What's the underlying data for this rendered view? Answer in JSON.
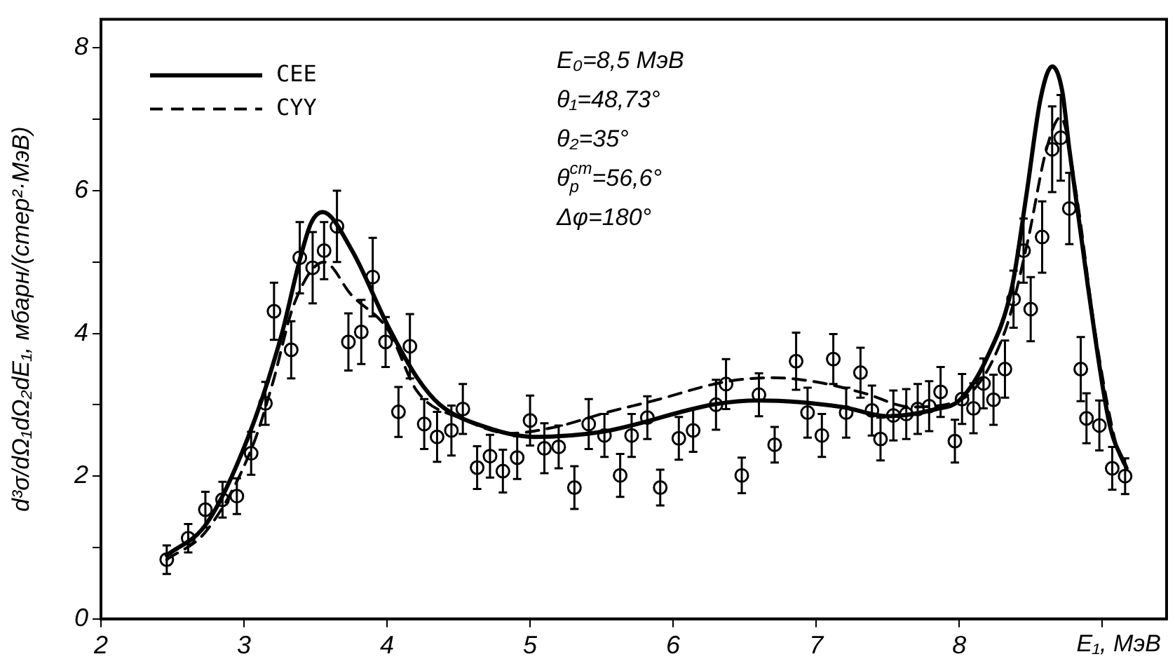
{
  "chart_data": {
    "type": "line",
    "xlabel": "E₁, МэВ",
    "ylabel": "d³σ/dΩ₁dΩ₂dE₁, мбарн/(стер²·МэВ)",
    "xlim": [
      2,
      9.45
    ],
    "ylim": [
      0,
      8.4
    ],
    "xticks": [
      2,
      3,
      4,
      5,
      6,
      7,
      8,
      {
        "value": 9,
        "label": null
      }
    ],
    "yticks": [
      0,
      {
        "value": 1,
        "label": null
      },
      2,
      {
        "value": 3,
        "label": null
      },
      4,
      {
        "value": 5,
        "label": null
      },
      6,
      {
        "value": 7,
        "label": null
      },
      8
    ],
    "grid": false,
    "legend": "top left",
    "annotations": [
      "E₀=8,5 МэВ",
      "θ₁=48,73°",
      "θ₂=35°",
      "θ$_{p}$$^{cm}$=56,6°",
      "Δφ=180°"
    ],
    "series": [
      {
        "name": "CEE",
        "type": "line",
        "color": "#000000",
        "line_style": "solid",
        "marker": "none",
        "x": [
          2.46,
          2.74,
          3.03,
          3.26,
          3.39,
          3.47,
          3.55,
          3.75,
          4.01,
          4.21,
          4.37,
          4.7,
          5.03,
          5.5,
          6.3,
          6.6,
          7.18,
          7.5,
          7.84,
          8.0,
          8.19,
          8.37,
          8.47,
          8.57,
          8.65,
          8.72,
          8.77,
          8.9,
          9.05,
          9.17
        ],
        "values": [
          0.89,
          1.34,
          2.55,
          3.96,
          5.03,
          5.55,
          5.7,
          5.18,
          4.09,
          3.38,
          3.0,
          2.68,
          2.55,
          2.62,
          3.01,
          3.06,
          2.97,
          2.84,
          2.94,
          3.06,
          3.64,
          4.66,
          5.94,
          7.3,
          7.74,
          7.4,
          6.58,
          4.66,
          2.74,
          2.11
        ]
      },
      {
        "name": "CYY",
        "type": "line",
        "color": "#000000",
        "line_style": "dashed",
        "marker": "none",
        "x": [
          2.46,
          2.74,
          3.06,
          3.2,
          3.35,
          3.56,
          3.75,
          4.01,
          4.21,
          4.53,
          4.86,
          5.18,
          5.55,
          5.87,
          6.36,
          6.69,
          7.0,
          7.34,
          7.66,
          7.99,
          8.32,
          8.48,
          8.61,
          8.71,
          8.82,
          8.95,
          9.1,
          9.15
        ],
        "values": [
          0.83,
          1.24,
          2.42,
          3.3,
          4.41,
          5.0,
          4.54,
          4.04,
          3.19,
          2.8,
          2.6,
          2.69,
          2.9,
          3.06,
          3.32,
          3.38,
          3.32,
          3.16,
          2.97,
          3.05,
          4.03,
          5.3,
          6.58,
          7.03,
          5.94,
          4.02,
          2.42,
          2.17
        ]
      },
      {
        "type": "scatter",
        "color": "#000000",
        "marker": "circle",
        "x": [
          2.46,
          2.61,
          2.73,
          2.85,
          2.95,
          3.05,
          3.15,
          3.21,
          3.33,
          3.39,
          3.48,
          3.56,
          3.65,
          3.73,
          3.82,
          3.9,
          3.99,
          4.08,
          4.16,
          4.26,
          4.35,
          4.45,
          4.53,
          4.63,
          4.72,
          4.81,
          4.91,
          5.0,
          5.1,
          5.2,
          5.31,
          5.41,
          5.52,
          5.63,
          5.71,
          5.82,
          5.91,
          6.04,
          6.14,
          6.3,
          6.37,
          6.48,
          6.6,
          6.71,
          6.86,
          6.94,
          7.04,
          7.12,
          7.21,
          7.31,
          7.39,
          7.45,
          7.54,
          7.63,
          7.71,
          7.79,
          7.87,
          7.97,
          8.02,
          8.1,
          8.17,
          8.24,
          8.32,
          8.38,
          8.45,
          8.5,
          8.58,
          8.65,
          8.71,
          8.77,
          8.85,
          8.89,
          8.98,
          9.07,
          9.16
        ],
        "values": [
          0.83,
          1.13,
          1.53,
          1.67,
          1.72,
          2.32,
          3.02,
          4.31,
          3.77,
          5.06,
          4.92,
          5.16,
          5.5,
          3.88,
          4.02,
          4.79,
          3.88,
          2.9,
          3.82,
          2.73,
          2.55,
          2.64,
          2.94,
          2.12,
          2.28,
          2.07,
          2.26,
          2.78,
          2.39,
          2.41,
          1.84,
          2.73,
          2.57,
          2.01,
          2.57,
          2.82,
          1.84,
          2.53,
          2.64,
          3.0,
          3.29,
          2.01,
          3.14,
          2.44,
          3.61,
          2.89,
          2.57,
          3.64,
          2.89,
          3.45,
          2.92,
          2.52,
          2.85,
          2.87,
          2.94,
          2.98,
          3.18,
          2.49,
          3.08,
          2.95,
          3.3,
          3.07,
          3.5,
          4.48,
          5.16,
          4.34,
          5.35,
          6.58,
          6.74,
          5.75,
          3.5,
          2.81,
          2.71,
          2.11,
          2.0
        ],
        "errors": [
          0.2,
          0.2,
          0.25,
          0.25,
          0.25,
          0.3,
          0.3,
          0.4,
          0.4,
          0.5,
          0.5,
          0.4,
          0.5,
          0.4,
          0.45,
          0.55,
          0.35,
          0.35,
          0.45,
          0.35,
          0.35,
          0.35,
          0.35,
          0.3,
          0.3,
          0.3,
          0.3,
          0.35,
          0.35,
          0.3,
          0.3,
          0.35,
          0.3,
          0.3,
          0.3,
          0.3,
          0.25,
          0.3,
          0.3,
          0.35,
          0.35,
          0.25,
          0.3,
          0.25,
          0.4,
          0.35,
          0.3,
          0.35,
          0.35,
          0.35,
          0.35,
          0.3,
          0.35,
          0.35,
          0.35,
          0.35,
          0.35,
          0.3,
          0.35,
          0.35,
          0.35,
          0.35,
          0.4,
          0.4,
          0.45,
          0.45,
          0.5,
          0.6,
          0.6,
          0.5,
          0.45,
          0.35,
          0.35,
          0.3,
          0.25
        ]
      }
    ]
  }
}
